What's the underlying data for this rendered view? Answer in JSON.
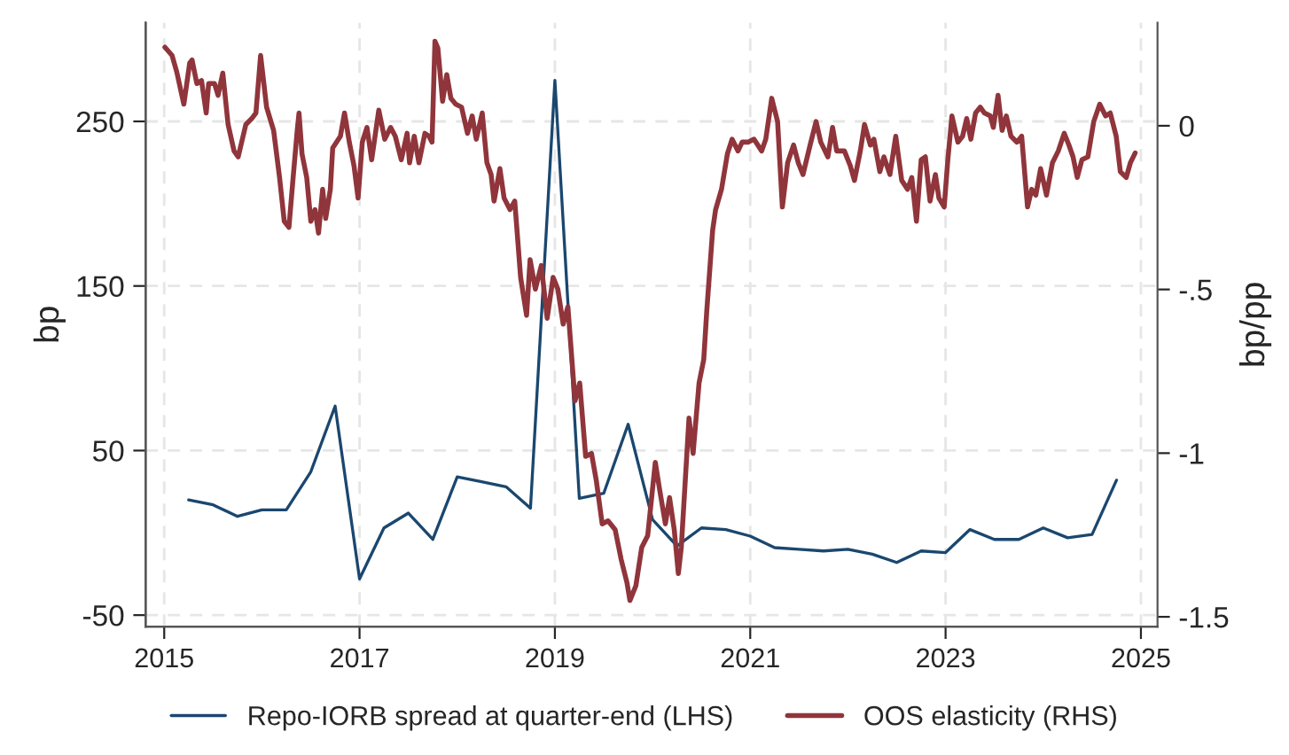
{
  "chart_data": {
    "type": "line",
    "ylabel": "bp",
    "y2label": "bp/pp",
    "grid": true,
    "legend": "bottom",
    "line_style": "solid",
    "marker": "none",
    "xlim": [
      2014.81,
      2025.17
    ],
    "xticks": [
      2015,
      2017,
      2019,
      2021,
      2023,
      2025
    ],
    "ylim": [
      -57,
      310
    ],
    "yticks": [
      -50,
      50,
      150,
      250
    ],
    "y2lim": [
      -1.53,
      0.315
    ],
    "y2ticks": [
      0,
      {
        "value": -0.5,
        "label": "-.5"
      },
      -1,
      -1.5
    ],
    "series": [
      {
        "name": "Repo-IORB spread at quarter-end (LHS)",
        "color": "#1a476f",
        "x": [
          2015.25,
          2015.5,
          2015.75,
          2016.0,
          2016.25,
          2016.5,
          2016.75,
          2017.0,
          2017.25,
          2017.5,
          2017.75,
          2018.0,
          2018.25,
          2018.5,
          2018.75,
          2019.0,
          2019.25,
          2019.5,
          2019.75,
          2020.0,
          2020.25,
          2020.5,
          2020.75,
          2021.0,
          2021.25,
          2021.5,
          2021.75,
          2022.0,
          2022.25,
          2022.5,
          2022.75,
          2023.0,
          2023.25,
          2023.5,
          2023.75,
          2024.0,
          2024.25,
          2024.5,
          2024.75
        ],
        "values": [
          20,
          17,
          10,
          14,
          14,
          37,
          77,
          -28,
          3,
          12,
          -4,
          34,
          31,
          28,
          15,
          275,
          21,
          24,
          66,
          8,
          -8,
          3,
          2,
          -2,
          -9,
          -10,
          -11,
          -10,
          -13,
          -18,
          -11,
          -12,
          2,
          -4,
          -4,
          3,
          -3,
          -1,
          32
        ]
      },
      {
        "name": "OOS elasticity (RHS)",
        "color": "#90353b",
        "axis": "y2",
        "x": [
          2015.007,
          2015.08,
          2015.128,
          2015.201,
          2015.261,
          2015.285,
          2015.334,
          2015.382,
          2015.43,
          2015.455,
          2015.515,
          2015.551,
          2015.6,
          2015.654,
          2015.715,
          2015.757,
          2015.836,
          2015.896,
          2015.939,
          2015.987,
          2016.048,
          2016.12,
          2016.181,
          2016.229,
          2016.277,
          2016.32,
          2016.362,
          2016.38,
          2016.411,
          2016.459,
          2016.501,
          2016.544,
          2016.58,
          2016.622,
          2016.653,
          2016.701,
          2016.725,
          2016.804,
          2016.846,
          2016.895,
          2016.943,
          2016.985,
          2017.028,
          2017.076,
          2017.124,
          2017.197,
          2017.258,
          2017.318,
          2017.366,
          2017.427,
          2017.487,
          2017.512,
          2017.56,
          2017.608,
          2017.669,
          2017.711,
          2017.742,
          2017.772,
          2017.802,
          2017.85,
          2017.893,
          2017.935,
          2017.984,
          2018.044,
          2018.105,
          2018.153,
          2018.195,
          2018.256,
          2018.304,
          2018.347,
          2018.377,
          2018.437,
          2018.48,
          2018.54,
          2018.589,
          2018.649,
          2018.71,
          2018.746,
          2018.8,
          2018.861,
          2018.921,
          2018.982,
          2019.03,
          2019.085,
          2019.133,
          2019.206,
          2019.254,
          2019.315,
          2019.375,
          2019.423,
          2019.484,
          2019.544,
          2019.617,
          2019.678,
          2019.738,
          2019.768,
          2019.829,
          2019.889,
          2019.95,
          2020.028,
          2020.071,
          2020.131,
          2020.174,
          2020.222,
          2020.264,
          2020.294,
          2020.373,
          2020.415,
          2020.476,
          2020.524,
          2020.554,
          2020.615,
          2020.645,
          2020.706,
          2020.766,
          2020.814,
          2020.875,
          2020.917,
          2020.978,
          2021.038,
          2021.117,
          2021.159,
          2021.22,
          2021.28,
          2021.329,
          2021.383,
          2021.444,
          2021.492,
          2021.54,
          2021.613,
          2021.674,
          2021.722,
          2021.795,
          2021.843,
          2021.885,
          2021.964,
          2022.024,
          2022.067,
          2022.127,
          2022.17,
          2022.23,
          2022.266,
          2022.327,
          2022.369,
          2022.43,
          2022.49,
          2022.551,
          2022.611,
          2022.654,
          2022.702,
          2022.75,
          2022.793,
          2022.841,
          2022.896,
          2022.932,
          2022.986,
          2023.023,
          2023.065,
          2023.126,
          2023.174,
          2023.216,
          2023.259,
          2023.307,
          2023.355,
          2023.398,
          2023.458,
          2023.489,
          2023.537,
          2023.579,
          2023.622,
          2023.67,
          2023.731,
          2023.779,
          2023.839,
          2023.882,
          2023.924,
          2023.973,
          2024.033,
          2024.094,
          2024.154,
          2024.215,
          2024.263,
          2024.305,
          2024.348,
          2024.396,
          2024.457,
          2024.517,
          2024.578,
          2024.638,
          2024.686,
          2024.747,
          2024.789,
          2024.85,
          2024.892,
          2024.941
        ],
        "values": [
          0.24,
          0.215,
          0.165,
          0.066,
          0.192,
          0.201,
          0.129,
          0.138,
          0.039,
          0.129,
          0.129,
          0.093,
          0.161,
          0.004,
          -0.077,
          -0.095,
          0.004,
          0.022,
          0.039,
          0.215,
          0.057,
          -0.014,
          -0.158,
          -0.292,
          -0.31,
          -0.158,
          -0.014,
          0.039,
          -0.086,
          -0.158,
          -0.292,
          -0.256,
          -0.328,
          -0.194,
          -0.283,
          -0.194,
          -0.068,
          -0.032,
          0.039,
          -0.05,
          -0.122,
          -0.221,
          -0.05,
          -0.005,
          -0.104,
          0.048,
          -0.041,
          -0.005,
          -0.032,
          -0.104,
          -0.023,
          -0.113,
          -0.032,
          -0.113,
          -0.023,
          -0.032,
          -0.05,
          0.258,
          0.237,
          0.075,
          0.156,
          0.084,
          0.066,
          0.057,
          -0.023,
          0.03,
          -0.041,
          0.039,
          -0.113,
          -0.149,
          -0.23,
          -0.131,
          -0.221,
          -0.256,
          -0.23,
          -0.463,
          -0.579,
          -0.409,
          -0.499,
          -0.427,
          -0.588,
          -0.463,
          -0.499,
          -0.606,
          -0.553,
          -0.84,
          -0.786,
          -1.01,
          -1.001,
          -1.082,
          -1.216,
          -1.207,
          -1.234,
          -1.324,
          -1.396,
          -1.45,
          -1.405,
          -1.288,
          -1.252,
          -1.028,
          -1.109,
          -1.216,
          -1.136,
          -1.234,
          -1.368,
          -1.288,
          -0.893,
          -1.001,
          -0.786,
          -0.714,
          -0.57,
          -0.319,
          -0.257,
          -0.194,
          -0.086,
          -0.041,
          -0.077,
          -0.05,
          -0.05,
          -0.041,
          -0.077,
          -0.041,
          0.084,
          0.013,
          -0.248,
          -0.113,
          -0.059,
          -0.113,
          -0.149,
          -0.059,
          0.013,
          -0.05,
          -0.095,
          -0.005,
          -0.077,
          -0.077,
          -0.122,
          -0.167,
          -0.077,
          0.004,
          -0.059,
          -0.041,
          -0.14,
          -0.095,
          -0.149,
          -0.032,
          -0.167,
          -0.194,
          -0.158,
          -0.292,
          -0.104,
          -0.095,
          -0.23,
          -0.149,
          -0.221,
          -0.248,
          -0.104,
          0.03,
          -0.05,
          -0.032,
          0.022,
          -0.041,
          0.039,
          0.057,
          0.039,
          0.03,
          -0.005,
          0.093,
          -0.014,
          0.03,
          -0.032,
          -0.05,
          -0.032,
          -0.248,
          -0.194,
          -0.212,
          -0.131,
          -0.212,
          -0.113,
          -0.077,
          -0.023,
          -0.059,
          -0.095,
          -0.158,
          -0.104,
          -0.095,
          0.013,
          0.066,
          0.03,
          0.039,
          -0.032,
          -0.14,
          -0.158,
          -0.113,
          -0.083
        ]
      }
    ]
  }
}
